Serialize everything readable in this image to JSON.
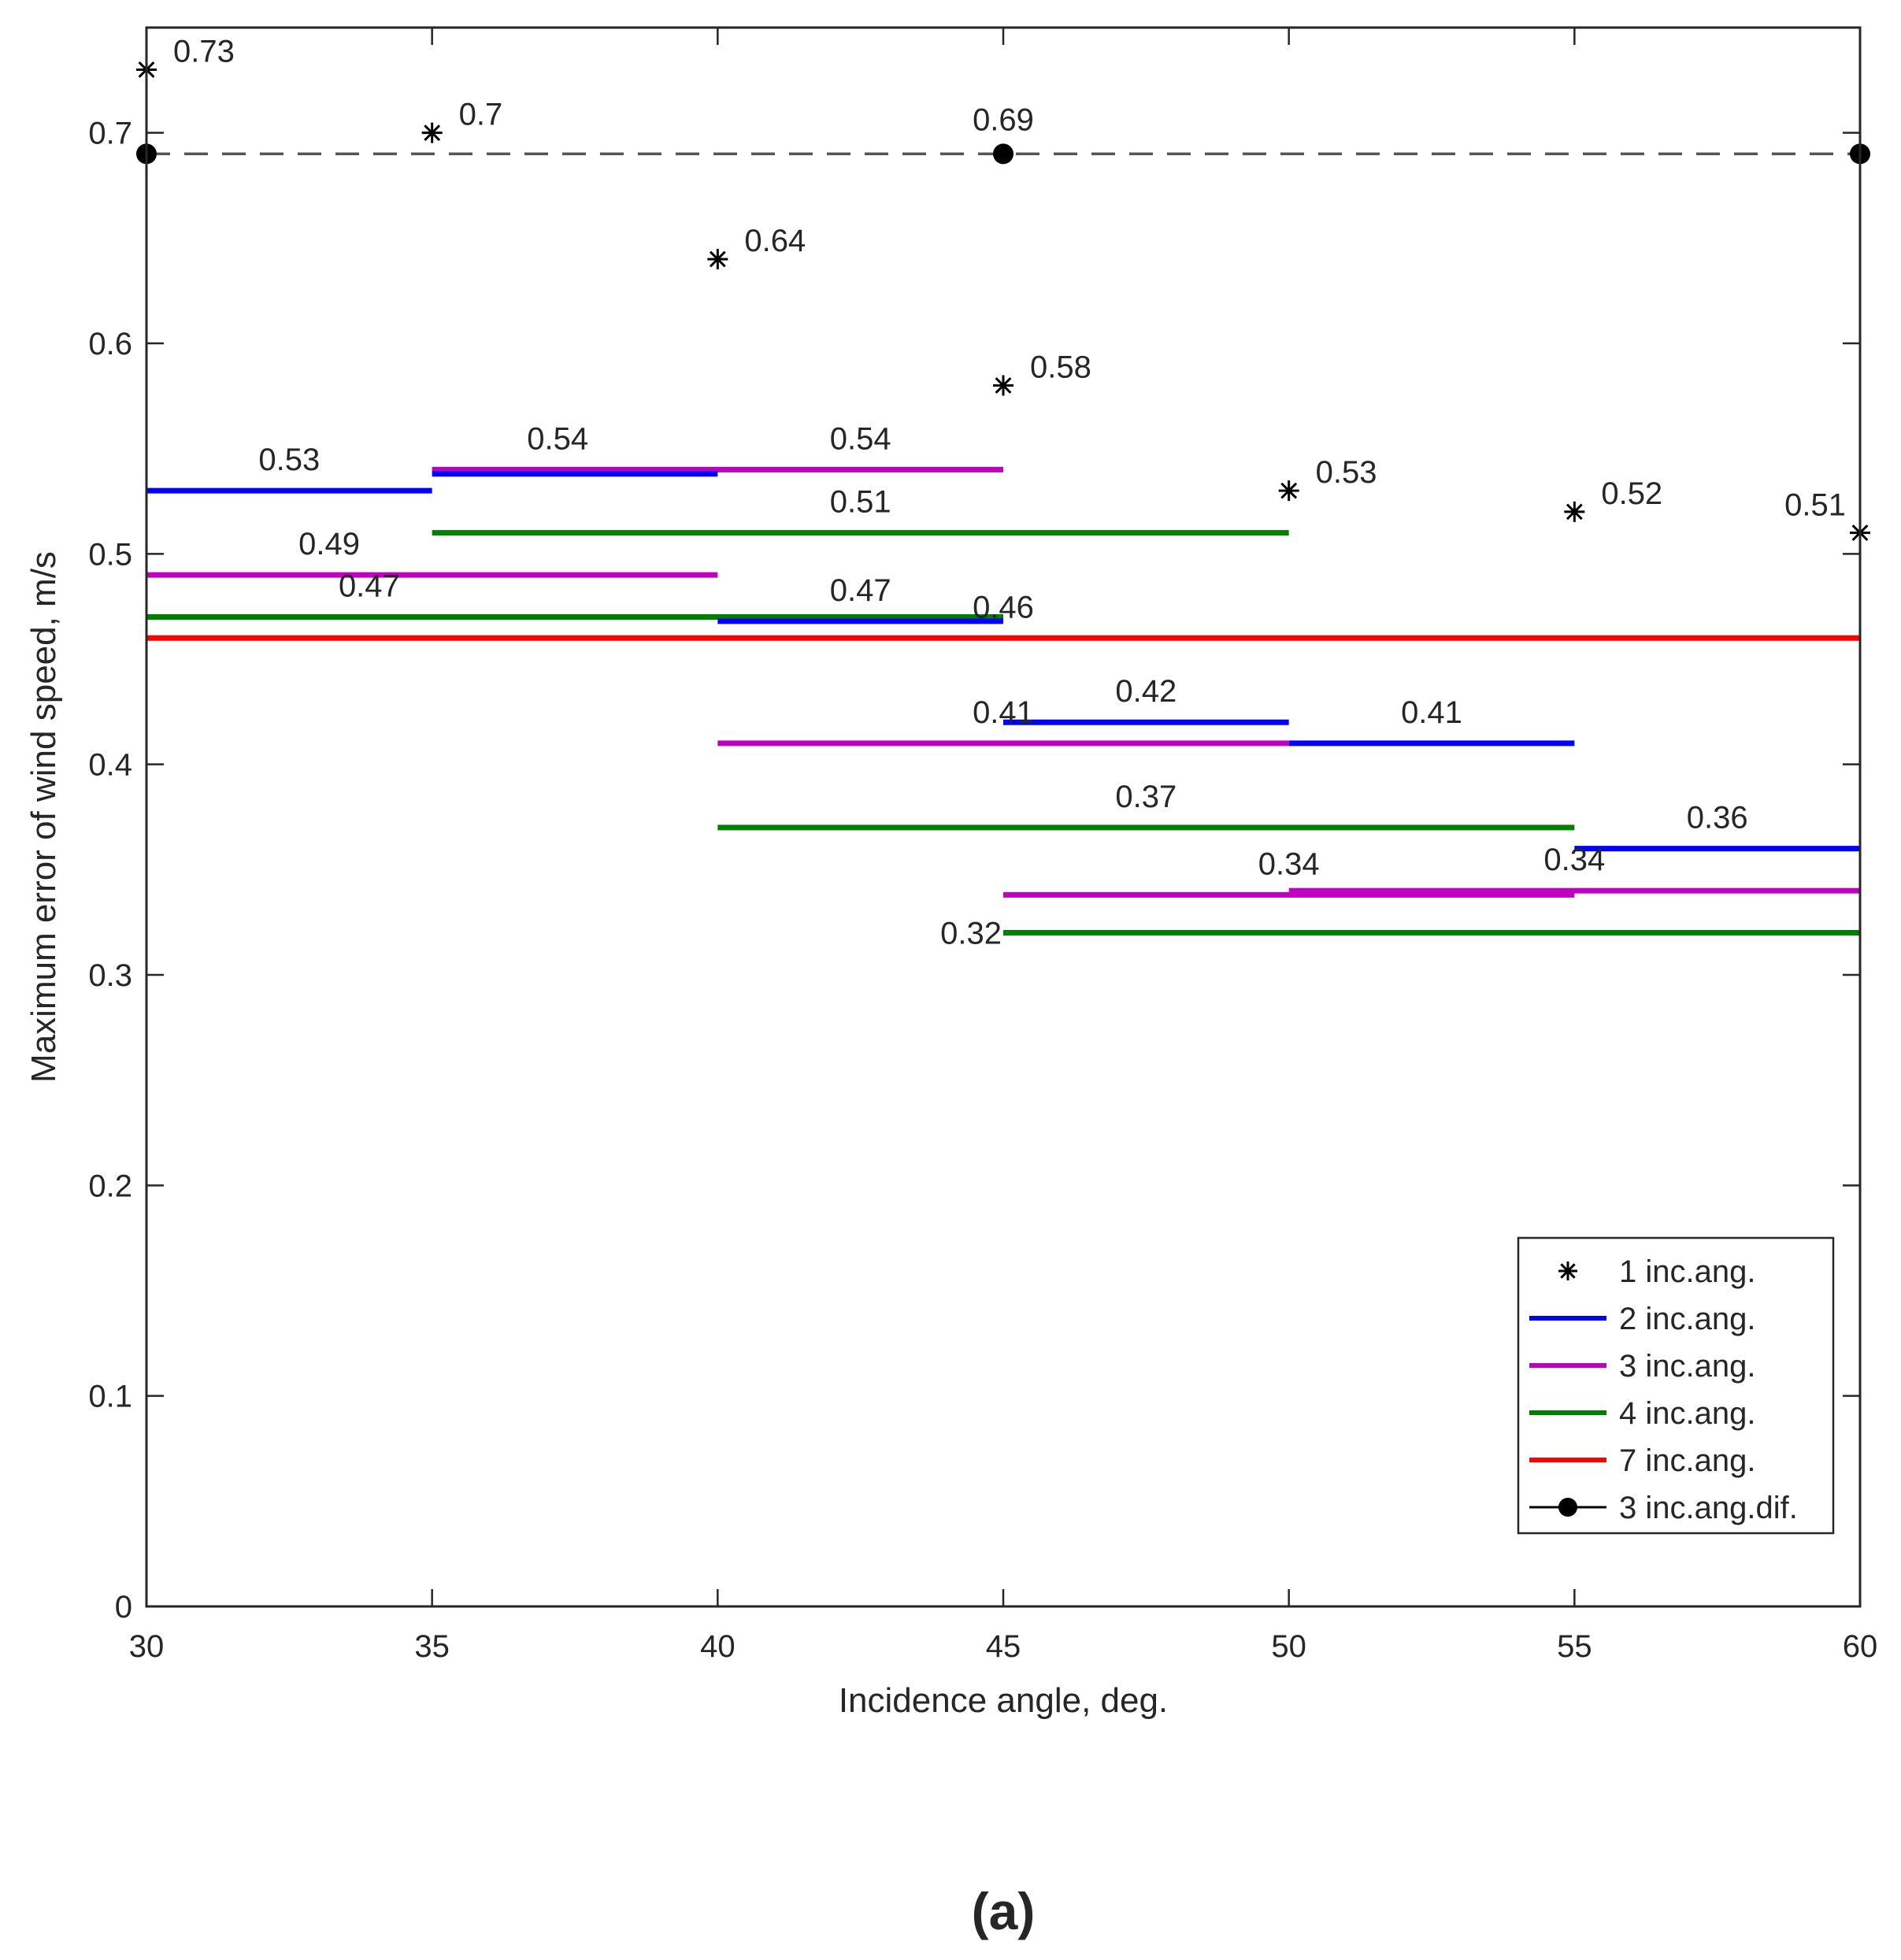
{
  "chart_data": {
    "type": "line",
    "title": "",
    "xlabel": "Incidence angle, deg.",
    "ylabel": "Maximum error of wind speed, m/s",
    "xlim": [
      30,
      60
    ],
    "ylim": [
      0,
      0.75
    ],
    "xticks": [
      30,
      35,
      40,
      45,
      50,
      55,
      60
    ],
    "xtick_labels": [
      "30",
      "35",
      "40",
      "45",
      "50",
      "55",
      "60"
    ],
    "yticks": [
      0,
      0.1,
      0.2,
      0.3,
      0.4,
      0.5,
      0.6,
      0.7
    ],
    "ytick_labels": [
      "0",
      "0.1",
      "0.2",
      "0.3",
      "0.4",
      "0.5",
      "0.6",
      "0.7"
    ],
    "grid": false,
    "legend_position": "bottom-right",
    "caption": "(a)",
    "colors": {
      "one": "#000000",
      "two": "#0000ff",
      "three": "#c000c0",
      "four": "#008000",
      "seven": "#ff0000",
      "dif": "#000000",
      "dif_line": "#555555"
    },
    "series": [
      {
        "name": "1 inc.ang.",
        "key": "one",
        "marker": "asterisk",
        "points": [
          {
            "x": 30,
            "y": 0.73,
            "label": "0.73"
          },
          {
            "x": 35,
            "y": 0.7,
            "label": "0.7"
          },
          {
            "x": 40,
            "y": 0.64,
            "label": "0.64"
          },
          {
            "x": 45,
            "y": 0.58,
            "label": "0.58"
          },
          {
            "x": 50,
            "y": 0.53,
            "label": "0.53"
          },
          {
            "x": 55,
            "y": 0.52,
            "label": "0.52"
          },
          {
            "x": 60,
            "y": 0.51,
            "label": "0.51"
          }
        ]
      },
      {
        "name": "2 inc.ang.",
        "key": "two",
        "marker": "segment",
        "segments": [
          {
            "x0": 30,
            "x1": 35,
            "y": 0.53,
            "label": "0.53"
          },
          {
            "x0": 35,
            "x1": 40,
            "y": 0.538,
            "label": ""
          },
          {
            "x0": 40,
            "x1": 45,
            "y": 0.468,
            "label": "0.47"
          },
          {
            "x0": 45,
            "x1": 50,
            "y": 0.42,
            "label": "0.42"
          },
          {
            "x0": 50,
            "x1": 55,
            "y": 0.41,
            "label": "0.41"
          },
          {
            "x0": 55,
            "x1": 60,
            "y": 0.36,
            "label": "0.36"
          }
        ]
      },
      {
        "name": "3 inc.ang.",
        "key": "three",
        "marker": "segment",
        "segments": [
          {
            "x0": 30,
            "x1": 40,
            "y": 0.49,
            "label": "0.49"
          },
          {
            "x0": 35,
            "x1": 45,
            "y": 0.54,
            "label": "0.54"
          },
          {
            "x0": 40,
            "x1": 50,
            "y": 0.41,
            "label": "0.41"
          },
          {
            "x0": 45,
            "x1": 55,
            "y": 0.338,
            "label": "0.34"
          },
          {
            "x0": 50,
            "x1": 60,
            "y": 0.34,
            "label": "0.34"
          }
        ]
      },
      {
        "name": "4 inc.ang.",
        "key": "four",
        "marker": "segment",
        "segments": [
          {
            "x0": 30,
            "x1": 45,
            "y": 0.47,
            "label": "0.47"
          },
          {
            "x0": 35,
            "x1": 50,
            "y": 0.51,
            "label": "0.51"
          },
          {
            "x0": 40,
            "x1": 55,
            "y": 0.37,
            "label": "0.37"
          },
          {
            "x0": 45,
            "x1": 60,
            "y": 0.32,
            "label": "0.32"
          }
        ]
      },
      {
        "name": "7 inc.ang.",
        "key": "seven",
        "marker": "segment",
        "segments": [
          {
            "x0": 30,
            "x1": 60,
            "y": 0.46,
            "label": "0.46"
          }
        ]
      },
      {
        "name": "3 inc.ang.dif.",
        "key": "dif",
        "marker": "dot-dashed",
        "points": [
          {
            "x": 30,
            "y": 0.69,
            "label": ""
          },
          {
            "x": 45,
            "y": 0.69,
            "label": "0.69"
          },
          {
            "x": 60,
            "y": 0.69,
            "label": ""
          }
        ]
      }
    ]
  }
}
